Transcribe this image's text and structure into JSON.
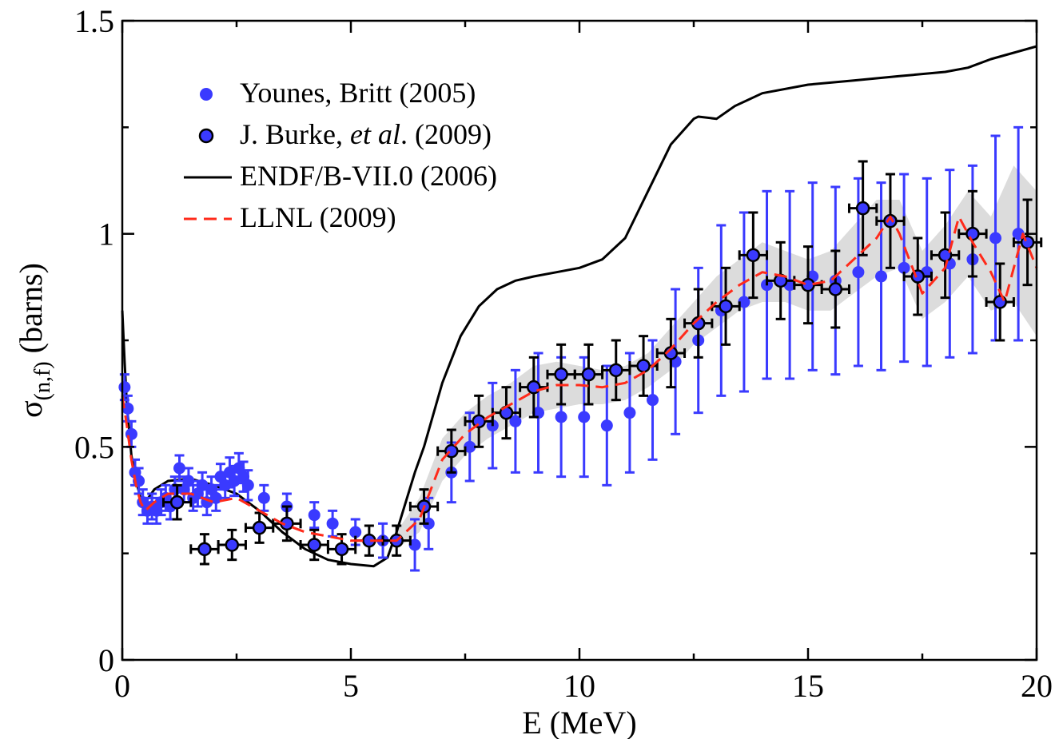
{
  "chart_data": {
    "type": "scatter",
    "title": "",
    "xlabel": "E (MeV)",
    "ylabel": {
      "symbol": "σ",
      "subscript": "(n,f)",
      "unit": " (barns)"
    },
    "xlim": [
      0,
      20
    ],
    "ylim": [
      0,
      1.5
    ],
    "x_ticks": [
      0,
      5,
      10,
      15,
      20
    ],
    "y_ticks": [
      0,
      0.5,
      1,
      1.5
    ],
    "x_tick_labels": [
      "0",
      "5",
      "10",
      "15",
      "20"
    ],
    "y_tick_labels": [
      "0",
      "0.5",
      "1",
      "1.5"
    ],
    "grid": false,
    "legend_position": "top-left",
    "colors": {
      "younes": "#3a3aff",
      "burke_fill": "#3a3aff",
      "endf": "#000000",
      "llnl": "#ff2a1a",
      "band": "#d6d6d6"
    },
    "legend": [
      {
        "key": "younes",
        "parts": [
          {
            "text": "Younes, Britt (2005)",
            "italic": false
          }
        ]
      },
      {
        "key": "burke",
        "parts": [
          {
            "text": "J. Burke, ",
            "italic": false
          },
          {
            "text": "et al",
            "italic": true
          },
          {
            "text": ". (2009)",
            "italic": false
          }
        ]
      },
      {
        "key": "endf",
        "parts": [
          {
            "text": "ENDF/B-VII.0 (2006)",
            "italic": false
          }
        ]
      },
      {
        "key": "llnl",
        "parts": [
          {
            "text": "LLNL (2009)",
            "italic": false
          }
        ]
      }
    ],
    "series": [
      {
        "key": "younes",
        "kind": "points",
        "points": [
          {
            "x": 0.05,
            "y": 0.64,
            "err": 0.03
          },
          {
            "x": 0.12,
            "y": 0.59,
            "err": 0.03
          },
          {
            "x": 0.2,
            "y": 0.53,
            "err": 0.03
          },
          {
            "x": 0.28,
            "y": 0.44,
            "err": 0.03
          },
          {
            "x": 0.36,
            "y": 0.42,
            "err": 0.03
          },
          {
            "x": 0.45,
            "y": 0.37,
            "err": 0.03
          },
          {
            "x": 0.55,
            "y": 0.35,
            "err": 0.03
          },
          {
            "x": 0.65,
            "y": 0.36,
            "err": 0.03
          },
          {
            "x": 0.75,
            "y": 0.35,
            "err": 0.03
          },
          {
            "x": 0.85,
            "y": 0.37,
            "err": 0.03
          },
          {
            "x": 0.95,
            "y": 0.38,
            "err": 0.03
          },
          {
            "x": 1.05,
            "y": 0.36,
            "err": 0.03
          },
          {
            "x": 1.15,
            "y": 0.4,
            "err": 0.03
          },
          {
            "x": 1.25,
            "y": 0.45,
            "err": 0.03
          },
          {
            "x": 1.35,
            "y": 0.4,
            "err": 0.03
          },
          {
            "x": 1.45,
            "y": 0.42,
            "err": 0.03
          },
          {
            "x": 1.55,
            "y": 0.38,
            "err": 0.03
          },
          {
            "x": 1.65,
            "y": 0.39,
            "err": 0.03
          },
          {
            "x": 1.75,
            "y": 0.41,
            "err": 0.03
          },
          {
            "x": 1.85,
            "y": 0.37,
            "err": 0.03
          },
          {
            "x": 1.95,
            "y": 0.4,
            "err": 0.03
          },
          {
            "x": 2.05,
            "y": 0.38,
            "err": 0.03
          },
          {
            "x": 2.15,
            "y": 0.43,
            "err": 0.03
          },
          {
            "x": 2.25,
            "y": 0.41,
            "err": 0.03
          },
          {
            "x": 2.35,
            "y": 0.44,
            "err": 0.035
          },
          {
            "x": 2.45,
            "y": 0.42,
            "err": 0.035
          },
          {
            "x": 2.55,
            "y": 0.45,
            "err": 0.035
          },
          {
            "x": 2.65,
            "y": 0.43,
            "err": 0.035
          },
          {
            "x": 2.75,
            "y": 0.41,
            "err": 0.035
          },
          {
            "x": 3.1,
            "y": 0.38,
            "err": 0.03
          },
          {
            "x": 3.6,
            "y": 0.36,
            "err": 0.03
          },
          {
            "x": 4.2,
            "y": 0.34,
            "err": 0.03
          },
          {
            "x": 4.6,
            "y": 0.32,
            "err": 0.03
          },
          {
            "x": 5.1,
            "y": 0.3,
            "err": 0.03
          },
          {
            "x": 5.7,
            "y": 0.28,
            "err": 0.04
          },
          {
            "x": 6.4,
            "y": 0.27,
            "err": 0.06
          },
          {
            "x": 6.7,
            "y": 0.32,
            "err": 0.06
          },
          {
            "x": 7.2,
            "y": 0.44,
            "err": 0.07
          },
          {
            "x": 7.6,
            "y": 0.5,
            "err": 0.08
          },
          {
            "x": 8.1,
            "y": 0.55,
            "err": 0.1
          },
          {
            "x": 8.6,
            "y": 0.56,
            "err": 0.12
          },
          {
            "x": 9.1,
            "y": 0.58,
            "err": 0.14
          },
          {
            "x": 9.6,
            "y": 0.57,
            "err": 0.14
          },
          {
            "x": 10.1,
            "y": 0.57,
            "err": 0.14
          },
          {
            "x": 10.6,
            "y": 0.55,
            "err": 0.14
          },
          {
            "x": 11.1,
            "y": 0.58,
            "err": 0.14
          },
          {
            "x": 11.6,
            "y": 0.61,
            "err": 0.14
          },
          {
            "x": 12.1,
            "y": 0.7,
            "err": 0.17
          },
          {
            "x": 12.6,
            "y": 0.75,
            "err": 0.17
          },
          {
            "x": 13.1,
            "y": 0.82,
            "err": 0.2
          },
          {
            "x": 13.6,
            "y": 0.84,
            "err": 0.21
          },
          {
            "x": 14.1,
            "y": 0.88,
            "err": 0.22
          },
          {
            "x": 14.6,
            "y": 0.88,
            "err": 0.22
          },
          {
            "x": 15.1,
            "y": 0.9,
            "err": 0.22
          },
          {
            "x": 15.6,
            "y": 0.89,
            "err": 0.22
          },
          {
            "x": 16.1,
            "y": 0.91,
            "err": 0.22
          },
          {
            "x": 16.6,
            "y": 0.9,
            "err": 0.22
          },
          {
            "x": 17.1,
            "y": 0.92,
            "err": 0.22
          },
          {
            "x": 17.6,
            "y": 0.91,
            "err": 0.22
          },
          {
            "x": 18.1,
            "y": 0.93,
            "err": 0.22
          },
          {
            "x": 18.6,
            "y": 0.94,
            "err": 0.22
          },
          {
            "x": 19.1,
            "y": 0.99,
            "err": 0.24
          },
          {
            "x": 19.6,
            "y": 1.0,
            "err": 0.25
          }
        ]
      },
      {
        "key": "burke",
        "kind": "points",
        "points": [
          {
            "x": 1.2,
            "y": 0.37,
            "err": 0.04,
            "xerr": 0.3
          },
          {
            "x": 1.8,
            "y": 0.26,
            "err": 0.035,
            "xerr": 0.3
          },
          {
            "x": 2.4,
            "y": 0.27,
            "err": 0.035,
            "xerr": 0.3
          },
          {
            "x": 3.0,
            "y": 0.31,
            "err": 0.035,
            "xerr": 0.3
          },
          {
            "x": 3.6,
            "y": 0.32,
            "err": 0.04,
            "xerr": 0.3
          },
          {
            "x": 4.2,
            "y": 0.27,
            "err": 0.035,
            "xerr": 0.3
          },
          {
            "x": 4.8,
            "y": 0.26,
            "err": 0.035,
            "xerr": 0.3
          },
          {
            "x": 5.4,
            "y": 0.28,
            "err": 0.035,
            "xerr": 0.3
          },
          {
            "x": 6.0,
            "y": 0.28,
            "err": 0.035,
            "xerr": 0.3
          },
          {
            "x": 6.6,
            "y": 0.36,
            "err": 0.04,
            "xerr": 0.3
          },
          {
            "x": 7.2,
            "y": 0.49,
            "err": 0.05,
            "xerr": 0.3
          },
          {
            "x": 7.8,
            "y": 0.56,
            "err": 0.06,
            "xerr": 0.3
          },
          {
            "x": 8.4,
            "y": 0.58,
            "err": 0.06,
            "xerr": 0.3
          },
          {
            "x": 9.0,
            "y": 0.64,
            "err": 0.07,
            "xerr": 0.3
          },
          {
            "x": 9.6,
            "y": 0.67,
            "err": 0.07,
            "xerr": 0.3
          },
          {
            "x": 10.2,
            "y": 0.67,
            "err": 0.07,
            "xerr": 0.3
          },
          {
            "x": 10.8,
            "y": 0.68,
            "err": 0.07,
            "xerr": 0.3
          },
          {
            "x": 11.4,
            "y": 0.69,
            "err": 0.07,
            "xerr": 0.3
          },
          {
            "x": 12.0,
            "y": 0.72,
            "err": 0.08,
            "xerr": 0.3
          },
          {
            "x": 12.6,
            "y": 0.79,
            "err": 0.08,
            "xerr": 0.3
          },
          {
            "x": 13.2,
            "y": 0.83,
            "err": 0.09,
            "xerr": 0.3
          },
          {
            "x": 13.8,
            "y": 0.95,
            "err": 0.1,
            "xerr": 0.3
          },
          {
            "x": 14.4,
            "y": 0.89,
            "err": 0.09,
            "xerr": 0.3
          },
          {
            "x": 15.0,
            "y": 0.88,
            "err": 0.09,
            "xerr": 0.3
          },
          {
            "x": 15.6,
            "y": 0.87,
            "err": 0.09,
            "xerr": 0.3
          },
          {
            "x": 16.2,
            "y": 1.06,
            "err": 0.11,
            "xerr": 0.3
          },
          {
            "x": 16.8,
            "y": 1.03,
            "err": 0.11,
            "xerr": 0.3
          },
          {
            "x": 17.4,
            "y": 0.9,
            "err": 0.09,
            "xerr": 0.3
          },
          {
            "x": 18.0,
            "y": 0.95,
            "err": 0.1,
            "xerr": 0.3
          },
          {
            "x": 18.6,
            "y": 1.0,
            "err": 0.1,
            "xerr": 0.3
          },
          {
            "x": 19.2,
            "y": 0.84,
            "err": 0.09,
            "xerr": 0.3
          },
          {
            "x": 19.8,
            "y": 0.98,
            "err": 0.1,
            "xerr": 0.3
          }
        ]
      },
      {
        "key": "endf",
        "kind": "line",
        "x": [
          0.0,
          0.05,
          0.1,
          0.2,
          0.3,
          0.4,
          0.5,
          0.7,
          1.0,
          1.5,
          2.0,
          2.5,
          3.0,
          3.5,
          4.0,
          4.5,
          5.0,
          5.5,
          5.8,
          6.0,
          6.2,
          6.4,
          6.6,
          7.0,
          7.4,
          7.8,
          8.2,
          8.6,
          9.0,
          9.5,
          10.0,
          10.5,
          11.0,
          11.5,
          12.0,
          12.5,
          12.6,
          13.0,
          13.4,
          14.0,
          15.0,
          16.0,
          17.0,
          18.0,
          18.5,
          19.0,
          19.5,
          20.0
        ],
        "y": [
          0.82,
          0.7,
          0.6,
          0.48,
          0.42,
          0.38,
          0.37,
          0.4,
          0.42,
          0.425,
          0.41,
          0.39,
          0.35,
          0.3,
          0.26,
          0.235,
          0.225,
          0.22,
          0.24,
          0.3,
          0.37,
          0.44,
          0.5,
          0.65,
          0.76,
          0.83,
          0.87,
          0.89,
          0.9,
          0.91,
          0.92,
          0.94,
          0.99,
          1.1,
          1.21,
          1.27,
          1.275,
          1.27,
          1.3,
          1.33,
          1.35,
          1.36,
          1.37,
          1.38,
          1.39,
          1.41,
          1.425,
          1.44
        ]
      },
      {
        "key": "llnl",
        "kind": "line",
        "x": [
          0.0,
          0.1,
          0.2,
          0.3,
          0.4,
          0.5,
          0.7,
          1.0,
          1.5,
          2.0,
          2.5,
          3.0,
          3.5,
          4.0,
          4.5,
          5.0,
          5.5,
          6.0,
          6.5,
          7.0,
          7.5,
          8.0,
          8.5,
          9.0,
          9.5,
          10.0,
          10.5,
          11.0,
          11.5,
          12.0,
          12.5,
          13.0,
          13.5,
          14.0,
          14.5,
          15.0,
          15.5,
          16.0,
          16.5,
          16.8,
          17.0,
          17.5,
          18.0,
          18.3,
          18.6,
          19.0,
          19.3,
          19.7,
          20.0
        ],
        "y": [
          0.62,
          0.55,
          0.47,
          0.41,
          0.37,
          0.35,
          0.37,
          0.39,
          0.39,
          0.37,
          0.38,
          0.35,
          0.32,
          0.3,
          0.29,
          0.28,
          0.28,
          0.28,
          0.33,
          0.47,
          0.53,
          0.57,
          0.6,
          0.63,
          0.645,
          0.645,
          0.64,
          0.65,
          0.68,
          0.73,
          0.79,
          0.84,
          0.88,
          0.91,
          0.9,
          0.88,
          0.89,
          0.94,
          0.99,
          1.04,
          1.0,
          0.86,
          0.92,
          1.04,
          0.98,
          0.91,
          0.84,
          1.0,
          0.92
        ]
      },
      {
        "key": "band",
        "kind": "band",
        "x": [
          6.0,
          6.5,
          7.0,
          7.5,
          8.0,
          8.5,
          9.0,
          9.5,
          10.0,
          10.5,
          11.0,
          11.5,
          12.0,
          12.5,
          13.0,
          13.5,
          14.0,
          14.5,
          15.0,
          15.5,
          16.0,
          16.5,
          17.0,
          17.5,
          18.0,
          18.5,
          19.0,
          19.5,
          20.0
        ],
        "upper": [
          0.3,
          0.38,
          0.52,
          0.58,
          0.62,
          0.65,
          0.69,
          0.7,
          0.69,
          0.68,
          0.69,
          0.72,
          0.78,
          0.84,
          0.9,
          0.94,
          0.98,
          0.96,
          0.94,
          0.96,
          1.02,
          1.08,
          1.08,
          0.96,
          1.02,
          1.1,
          1.04,
          1.16,
          1.1
        ],
        "lower": [
          0.26,
          0.3,
          0.42,
          0.48,
          0.52,
          0.55,
          0.58,
          0.59,
          0.6,
          0.6,
          0.61,
          0.64,
          0.68,
          0.74,
          0.78,
          0.82,
          0.84,
          0.84,
          0.82,
          0.82,
          0.86,
          0.9,
          0.92,
          0.8,
          0.84,
          0.9,
          0.82,
          0.84,
          0.76
        ]
      }
    ]
  }
}
